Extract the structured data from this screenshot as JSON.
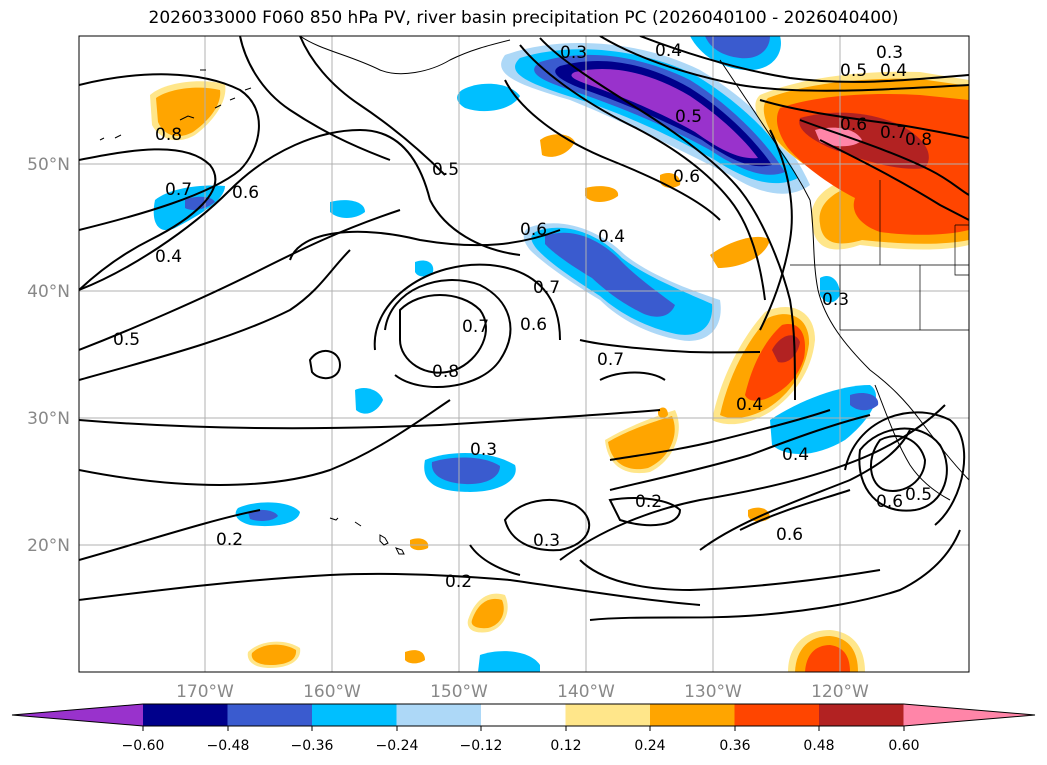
{
  "title": "2026033000 F060 850 hPa PV, river basin precipitation PC (2026040100 - 2026040400)",
  "map": {
    "lat_labels": [
      "50°N",
      "40°N",
      "30°N",
      "20°N"
    ],
    "lon_labels": [
      "170°W",
      "160°W",
      "150°W",
      "140°W",
      "130°W",
      "120°W"
    ],
    "gridlines": true
  },
  "contour_labels": [
    "0.3",
    "0.4",
    "0.3",
    "0.5",
    "0.4",
    "0.8",
    "0.5",
    "0.6",
    "0.7",
    "0.8",
    "0.5",
    "0.7",
    "0.6",
    "0.4",
    "0.6",
    "0.6",
    "0.4",
    "0.7",
    "0.6",
    "0.5",
    "0.7",
    "0.8",
    "0.7",
    "0.3",
    "0.4",
    "0.4",
    "0.3",
    "0.2",
    "0.2",
    "0.3",
    "0.2",
    "0.6",
    "0.6",
    "0.5"
  ],
  "colorbar": {
    "ticks": [
      "−0.60",
      "−0.48",
      "−0.36",
      "−0.24",
      "−0.12",
      "0.12",
      "0.24",
      "0.36",
      "0.48",
      "0.60"
    ],
    "colors": [
      "#9932cc",
      "#00008b",
      "#3a5bcf",
      "#00bfff",
      "#add8f7",
      "#ffffff",
      "#ffe68a",
      "#ffa500",
      "#ff4500",
      "#b22222",
      "#ff85a8"
    ]
  }
}
